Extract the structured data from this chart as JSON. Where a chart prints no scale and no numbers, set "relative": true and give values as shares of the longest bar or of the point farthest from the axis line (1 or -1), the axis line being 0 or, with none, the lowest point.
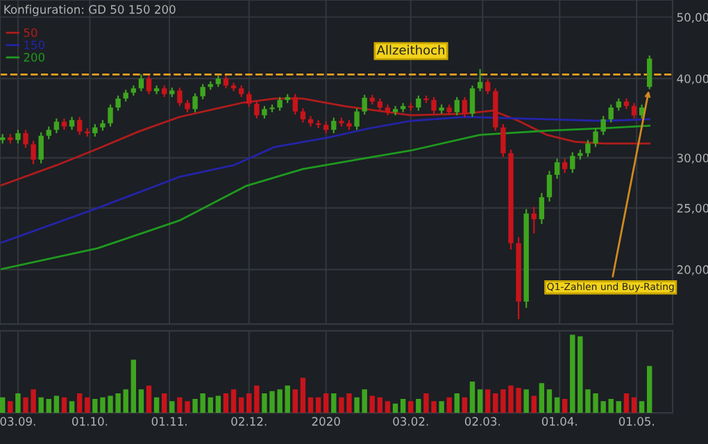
{
  "chart_data": [
    {
      "type": "candlestick",
      "subtitle": "Konfiguration: GD 50 150 200",
      "x": [
        "2019-08-28",
        "2019-08-31",
        "2019-09-03",
        "2019-09-06",
        "2019-09-09",
        "2019-09-12",
        "2019-09-15",
        "2019-09-18",
        "2019-09-21",
        "2019-09-24",
        "2019-09-27",
        "2019-09-30",
        "2019-10-03",
        "2019-10-06",
        "2019-10-09",
        "2019-10-12",
        "2019-10-15",
        "2019-10-18",
        "2019-10-21",
        "2019-10-24",
        "2019-10-27",
        "2019-10-30",
        "2019-11-02",
        "2019-11-05",
        "2019-11-08",
        "2019-11-11",
        "2019-11-14",
        "2019-11-17",
        "2019-11-20",
        "2019-11-23",
        "2019-11-26",
        "2019-11-29",
        "2019-12-02",
        "2019-12-05",
        "2019-12-08",
        "2019-12-11",
        "2019-12-14",
        "2019-12-17",
        "2019-12-20",
        "2019-12-23",
        "2019-12-26",
        "2019-12-29",
        "2020-01-01",
        "2020-01-04",
        "2020-01-07",
        "2020-01-10",
        "2020-01-13",
        "2020-01-16",
        "2020-01-19",
        "2020-01-22",
        "2020-01-25",
        "2020-01-28",
        "2020-01-31",
        "2020-02-03",
        "2020-02-06",
        "2020-02-09",
        "2020-02-12",
        "2020-02-15",
        "2020-02-18",
        "2020-02-21",
        "2020-02-24",
        "2020-02-27",
        "2020-03-01",
        "2020-03-04",
        "2020-03-07",
        "2020-03-10",
        "2020-03-13",
        "2020-03-16",
        "2020-03-19",
        "2020-03-22",
        "2020-03-25",
        "2020-03-28",
        "2020-03-31",
        "2020-04-03",
        "2020-04-06",
        "2020-04-09",
        "2020-04-12",
        "2020-04-15",
        "2020-04-18",
        "2020-04-21",
        "2020-04-24",
        "2020-04-27",
        "2020-04-30",
        "2020-05-03",
        "2020-05-06"
      ],
      "ohlc": [
        [
          32.0,
          32.7,
          31.6,
          32.3
        ],
        [
          32.3,
          32.7,
          31.6,
          32.0
        ],
        [
          32.0,
          33.2,
          31.6,
          32.8
        ],
        [
          32.8,
          33.2,
          31.1,
          31.5
        ],
        [
          31.5,
          31.9,
          29.3,
          29.8
        ],
        [
          29.8,
          32.9,
          29.4,
          32.5
        ],
        [
          32.5,
          33.6,
          32.1,
          33.2
        ],
        [
          33.2,
          34.6,
          32.8,
          34.2
        ],
        [
          34.2,
          34.6,
          33.2,
          33.6
        ],
        [
          33.6,
          34.8,
          33.2,
          34.4
        ],
        [
          34.4,
          34.8,
          32.6,
          33.0
        ],
        [
          33.0,
          33.4,
          32.4,
          32.8
        ],
        [
          32.8,
          33.9,
          32.4,
          33.5
        ],
        [
          33.5,
          34.4,
          33.1,
          34.0
        ],
        [
          34.0,
          36.4,
          33.6,
          36.0
        ],
        [
          36.0,
          37.6,
          35.6,
          37.2
        ],
        [
          37.2,
          38.4,
          36.8,
          38.0
        ],
        [
          38.0,
          39.0,
          37.6,
          38.6
        ],
        [
          38.6,
          40.6,
          38.2,
          40.0
        ],
        [
          40.0,
          40.4,
          37.8,
          38.2
        ],
        [
          38.2,
          39.0,
          37.8,
          38.6
        ],
        [
          38.6,
          39.0,
          37.4,
          37.8
        ],
        [
          37.8,
          38.7,
          37.4,
          38.3
        ],
        [
          38.3,
          38.7,
          36.2,
          36.6
        ],
        [
          36.6,
          37.0,
          35.4,
          35.8
        ],
        [
          35.8,
          37.9,
          35.4,
          37.5
        ],
        [
          37.5,
          39.2,
          37.1,
          38.8
        ],
        [
          38.8,
          39.6,
          38.4,
          39.2
        ],
        [
          39.2,
          40.4,
          38.8,
          40.0
        ],
        [
          40.0,
          40.4,
          38.6,
          39.0
        ],
        [
          39.0,
          39.4,
          38.2,
          38.6
        ],
        [
          38.6,
          39.0,
          37.4,
          37.8
        ],
        [
          37.8,
          38.2,
          36.1,
          36.5
        ],
        [
          36.5,
          36.9,
          34.6,
          35.0
        ],
        [
          35.0,
          36.2,
          34.6,
          35.8
        ],
        [
          35.8,
          36.4,
          35.4,
          36.0
        ],
        [
          36.0,
          37.4,
          35.6,
          37.0
        ],
        [
          37.0,
          37.8,
          36.6,
          37.4
        ],
        [
          37.4,
          37.8,
          35.1,
          35.5
        ],
        [
          35.5,
          35.9,
          34.1,
          34.5
        ],
        [
          34.5,
          34.9,
          33.6,
          34.0
        ],
        [
          34.0,
          34.4,
          33.4,
          33.8
        ],
        [
          33.8,
          34.2,
          32.8,
          33.2
        ],
        [
          33.2,
          34.7,
          32.8,
          34.3
        ],
        [
          34.3,
          34.7,
          33.6,
          34.0
        ],
        [
          34.0,
          34.4,
          33.2,
          33.6
        ],
        [
          33.6,
          35.9,
          33.2,
          35.5
        ],
        [
          35.5,
          37.7,
          35.1,
          37.3
        ],
        [
          37.3,
          37.7,
          36.4,
          36.8
        ],
        [
          36.8,
          37.2,
          35.6,
          36.0
        ],
        [
          36.0,
          36.4,
          35.0,
          35.4
        ],
        [
          35.4,
          36.2,
          35.0,
          35.8
        ],
        [
          35.8,
          36.6,
          35.4,
          36.2
        ],
        [
          36.2,
          36.6,
          35.6,
          36.0
        ],
        [
          36.0,
          37.6,
          35.6,
          37.2
        ],
        [
          37.2,
          37.6,
          36.6,
          37.0
        ],
        [
          37.0,
          37.4,
          35.2,
          35.6
        ],
        [
          35.6,
          36.4,
          35.2,
          36.0
        ],
        [
          36.0,
          36.4,
          35.0,
          35.4
        ],
        [
          35.4,
          37.4,
          35.0,
          37.0
        ],
        [
          37.0,
          37.4,
          34.8,
          35.2
        ],
        [
          35.2,
          39.0,
          34.8,
          38.6
        ],
        [
          38.6,
          41.4,
          38.2,
          39.5
        ],
        [
          39.5,
          39.9,
          37.8,
          38.2
        ],
        [
          38.2,
          38.6,
          33.1,
          33.5
        ],
        [
          33.5,
          33.9,
          30.1,
          30.5
        ],
        [
          30.5,
          30.9,
          21.5,
          22.0
        ],
        [
          22.0,
          22.5,
          16.7,
          17.8
        ],
        [
          17.8,
          24.9,
          17.4,
          24.5
        ],
        [
          24.5,
          25.1,
          22.8,
          24.0
        ],
        [
          24.0,
          26.4,
          23.6,
          26.0
        ],
        [
          26.0,
          28.6,
          25.6,
          28.2
        ],
        [
          28.2,
          29.9,
          27.8,
          29.5
        ],
        [
          29.5,
          29.9,
          28.4,
          28.8
        ],
        [
          28.8,
          30.6,
          28.4,
          30.2
        ],
        [
          30.2,
          30.9,
          29.8,
          30.5
        ],
        [
          30.5,
          32.0,
          30.1,
          31.6
        ],
        [
          31.6,
          33.4,
          31.2,
          33.0
        ],
        [
          33.0,
          34.9,
          32.6,
          34.5
        ],
        [
          34.5,
          36.4,
          34.1,
          36.0
        ],
        [
          36.0,
          37.2,
          35.6,
          36.8
        ],
        [
          36.8,
          37.2,
          35.8,
          36.2
        ],
        [
          36.2,
          36.6,
          34.6,
          35.0
        ],
        [
          35.0,
          36.4,
          34.6,
          36.0
        ],
        [
          38.8,
          43.5,
          38.5,
          43.0
        ]
      ],
      "colors": [
        "#3ea51f",
        "#c8141b",
        "#3ea51f",
        "#c8141b",
        "#c8141b",
        "#3ea51f",
        "#3ea51f",
        "#3ea51f",
        "#c8141b",
        "#3ea51f",
        "#c8141b",
        "#c8141b",
        "#3ea51f",
        "#3ea51f",
        "#3ea51f",
        "#3ea51f",
        "#3ea51f",
        "#3ea51f",
        "#3ea51f",
        "#c8141b",
        "#3ea51f",
        "#c8141b",
        "#3ea51f",
        "#c8141b",
        "#c8141b",
        "#3ea51f",
        "#3ea51f",
        "#3ea51f",
        "#3ea51f",
        "#c8141b",
        "#c8141b",
        "#c8141b",
        "#c8141b",
        "#c8141b",
        "#3ea51f",
        "#3ea51f",
        "#3ea51f",
        "#3ea51f",
        "#c8141b",
        "#c8141b",
        "#c8141b",
        "#c8141b",
        "#c8141b",
        "#3ea51f",
        "#c8141b",
        "#c8141b",
        "#3ea51f",
        "#3ea51f",
        "#c8141b",
        "#c8141b",
        "#c8141b",
        "#3ea51f",
        "#3ea51f",
        "#c8141b",
        "#3ea51f",
        "#c8141b",
        "#c8141b",
        "#3ea51f",
        "#c8141b",
        "#3ea51f",
        "#c8141b",
        "#3ea51f",
        "#3ea51f",
        "#c8141b",
        "#c8141b",
        "#c8141b",
        "#c8141b",
        "#c8141b",
        "#3ea51f",
        "#c8141b",
        "#3ea51f",
        "#3ea51f",
        "#3ea51f",
        "#c8141b",
        "#3ea51f",
        "#3ea51f",
        "#3ea51f",
        "#3ea51f",
        "#3ea51f",
        "#3ea51f",
        "#3ea51f",
        "#c8141b",
        "#c8141b",
        "#3ea51f",
        "#3ea51f"
      ],
      "series": [
        {
          "type": "line",
          "name": "50",
          "color": "#b01c1c",
          "x": [
            "2019-08-27",
            "2019-09-18",
            "2019-10-04",
            "2019-10-20",
            "2019-11-05",
            "2019-11-21",
            "2019-11-29",
            "2019-12-12",
            "2019-12-23",
            "2020-01-08",
            "2020-02-03",
            "2020-02-24",
            "2020-03-06",
            "2020-03-16",
            "2020-03-27",
            "2020-04-07",
            "2020-04-18",
            "2020-05-06"
          ],
          "values": [
            27.1,
            29.2,
            31.0,
            33.0,
            34.8,
            36.0,
            36.6,
            37.2,
            37.2,
            36.2,
            35.0,
            35.2,
            35.6,
            34.3,
            32.6,
            31.8,
            31.6,
            31.6
          ]
        },
        {
          "type": "line",
          "name": "150",
          "color": "#2424a8",
          "x": [
            "2019-08-27",
            "2019-10-04",
            "2019-11-05",
            "2019-11-26",
            "2019-12-12",
            "2020-01-02",
            "2020-01-18",
            "2020-02-03",
            "2020-02-24",
            "2020-03-06",
            "2020-03-27",
            "2020-04-18",
            "2020-05-06"
          ],
          "values": [
            22.0,
            25.0,
            28.0,
            29.2,
            31.2,
            32.3,
            33.4,
            34.3,
            34.8,
            34.7,
            34.5,
            34.3,
            34.5
          ]
        },
        {
          "type": "line",
          "name": "200",
          "color": "#1f9a1f",
          "x": [
            "2019-08-27",
            "2019-10-04",
            "2019-11-05",
            "2019-12-01",
            "2019-12-23",
            "2020-01-13",
            "2020-02-03",
            "2020-03-01",
            "2020-03-27",
            "2020-04-18",
            "2020-05-06"
          ],
          "values": [
            20.0,
            21.6,
            23.9,
            27.1,
            28.8,
            29.8,
            30.8,
            32.6,
            33.1,
            33.4,
            33.7
          ]
        }
      ],
      "ref_lines": [
        {
          "axis": "y",
          "value": 40.6,
          "label": "Allzeithoch",
          "color": "#e8a020",
          "line_style": "dashed"
        }
      ],
      "annotations": [
        {
          "text": "Q1-Zahlen und Buy-Rating",
          "x": "2020-05-06",
          "y": 38.8
        }
      ],
      "log": true,
      "ylim": [
        16.4,
        53.2
      ],
      "yticks": [
        {
          "value": 20,
          "label": "20,00"
        },
        {
          "value": 25,
          "label": "25,00"
        },
        {
          "value": 30,
          "label": "30,00"
        },
        {
          "value": 40,
          "label": "40,00"
        },
        {
          "value": 50,
          "label": "50,00"
        }
      ],
      "xlim": [
        "2019-08-27",
        "2020-05-15"
      ],
      "xticks": [
        {
          "value": "2019-09-03",
          "label": null
        },
        {
          "value": "2019-10-01",
          "label": null
        },
        {
          "value": "2019-11-01",
          "label": null
        },
        {
          "value": "2019-12-02",
          "label": null
        },
        {
          "value": "2020-01-01",
          "label": null
        },
        {
          "value": "2020-02-03",
          "label": null
        },
        {
          "value": "2020-03-02",
          "label": null
        },
        {
          "value": "2020-04-01",
          "label": null
        },
        {
          "value": "2020-05-01",
          "label": null
        }
      ],
      "grid": true,
      "legend": "top left",
      "tick_labels": "y"
    },
    {
      "type": "bar",
      "relative": true,
      "x": [
        "2019-08-28",
        "2019-08-31",
        "2019-09-03",
        "2019-09-06",
        "2019-09-09",
        "2019-09-12",
        "2019-09-15",
        "2019-09-18",
        "2019-09-21",
        "2019-09-24",
        "2019-09-27",
        "2019-09-30",
        "2019-10-03",
        "2019-10-06",
        "2019-10-09",
        "2019-10-12",
        "2019-10-15",
        "2019-10-18",
        "2019-10-21",
        "2019-10-24",
        "2019-10-27",
        "2019-10-30",
        "2019-11-02",
        "2019-11-05",
        "2019-11-08",
        "2019-11-11",
        "2019-11-14",
        "2019-11-17",
        "2019-11-20",
        "2019-11-23",
        "2019-11-26",
        "2019-11-29",
        "2019-12-02",
        "2019-12-05",
        "2019-12-08",
        "2019-12-11",
        "2019-12-14",
        "2019-12-17",
        "2019-12-20",
        "2019-12-23",
        "2019-12-26",
        "2019-12-29",
        "2020-01-01",
        "2020-01-04",
        "2020-01-07",
        "2020-01-10",
        "2020-01-13",
        "2020-01-16",
        "2020-01-19",
        "2020-01-22",
        "2020-01-25",
        "2020-01-28",
        "2020-01-31",
        "2020-02-03",
        "2020-02-06",
        "2020-02-09",
        "2020-02-12",
        "2020-02-15",
        "2020-02-18",
        "2020-02-21",
        "2020-02-24",
        "2020-02-27",
        "2020-03-01",
        "2020-03-04",
        "2020-03-07",
        "2020-03-10",
        "2020-03-13",
        "2020-03-16",
        "2020-03-19",
        "2020-03-22",
        "2020-03-25",
        "2020-03-28",
        "2020-03-31",
        "2020-04-03",
        "2020-04-06",
        "2020-04-09",
        "2020-04-12",
        "2020-04-15",
        "2020-04-18",
        "2020-04-21",
        "2020-04-24",
        "2020-04-27",
        "2020-04-30",
        "2020-05-03",
        "2020-05-06"
      ],
      "values": [
        0.2,
        0.15,
        0.25,
        0.2,
        0.3,
        0.2,
        0.18,
        0.22,
        0.2,
        0.15,
        0.25,
        0.2,
        0.18,
        0.2,
        0.22,
        0.25,
        0.3,
        0.68,
        0.3,
        0.35,
        0.2,
        0.25,
        0.15,
        0.2,
        0.15,
        0.18,
        0.25,
        0.2,
        0.22,
        0.25,
        0.3,
        0.2,
        0.25,
        0.35,
        0.25,
        0.28,
        0.3,
        0.35,
        0.3,
        0.45,
        0.2,
        0.2,
        0.25,
        0.25,
        0.2,
        0.25,
        0.2,
        0.3,
        0.22,
        0.2,
        0.15,
        0.12,
        0.18,
        0.15,
        0.18,
        0.25,
        0.15,
        0.15,
        0.2,
        0.25,
        0.2,
        0.4,
        0.3,
        0.3,
        0.25,
        0.3,
        0.35,
        0.32,
        0.3,
        0.22,
        0.38,
        0.3,
        0.2,
        0.18,
        1.0,
        0.98,
        0.3,
        0.25,
        0.15,
        0.18,
        0.15,
        0.25,
        0.2,
        0.15,
        0.6
      ],
      "colors": [
        "#3ea51f",
        "#c8141b",
        "#3ea51f",
        "#c8141b",
        "#c8141b",
        "#3ea51f",
        "#3ea51f",
        "#3ea51f",
        "#c8141b",
        "#3ea51f",
        "#c8141b",
        "#c8141b",
        "#3ea51f",
        "#3ea51f",
        "#3ea51f",
        "#3ea51f",
        "#3ea51f",
        "#3ea51f",
        "#3ea51f",
        "#c8141b",
        "#3ea51f",
        "#c8141b",
        "#3ea51f",
        "#c8141b",
        "#c8141b",
        "#3ea51f",
        "#3ea51f",
        "#3ea51f",
        "#3ea51f",
        "#c8141b",
        "#c8141b",
        "#c8141b",
        "#c8141b",
        "#c8141b",
        "#3ea51f",
        "#3ea51f",
        "#3ea51f",
        "#3ea51f",
        "#c8141b",
        "#c8141b",
        "#c8141b",
        "#c8141b",
        "#c8141b",
        "#3ea51f",
        "#c8141b",
        "#c8141b",
        "#3ea51f",
        "#3ea51f",
        "#c8141b",
        "#c8141b",
        "#c8141b",
        "#3ea51f",
        "#3ea51f",
        "#c8141b",
        "#3ea51f",
        "#c8141b",
        "#c8141b",
        "#3ea51f",
        "#c8141b",
        "#3ea51f",
        "#c8141b",
        "#3ea51f",
        "#3ea51f",
        "#c8141b",
        "#c8141b",
        "#c8141b",
        "#c8141b",
        "#c8141b",
        "#3ea51f",
        "#c8141b",
        "#3ea51f",
        "#3ea51f",
        "#3ea51f",
        "#c8141b",
        "#3ea51f",
        "#3ea51f",
        "#3ea51f",
        "#3ea51f",
        "#3ea51f",
        "#3ea51f",
        "#3ea51f",
        "#c8141b",
        "#c8141b",
        "#3ea51f",
        "#3ea51f"
      ],
      "xlim": [
        "2019-08-27",
        "2020-05-15"
      ],
      "xticks": [
        {
          "value": "2019-09-03",
          "label": "03.09."
        },
        {
          "value": "2019-10-01",
          "label": "01.10."
        },
        {
          "value": "2019-11-01",
          "label": "01.11."
        },
        {
          "value": "2019-12-02",
          "label": "02.12."
        },
        {
          "value": "2020-01-01",
          "label": "2020"
        },
        {
          "value": "2020-02-03",
          "label": "03.02."
        },
        {
          "value": "2020-03-02",
          "label": "02.03."
        },
        {
          "value": "2020-04-01",
          "label": "01.04."
        },
        {
          "value": "2020-05-01",
          "label": "01.05."
        }
      ],
      "grid": "x"
    }
  ]
}
